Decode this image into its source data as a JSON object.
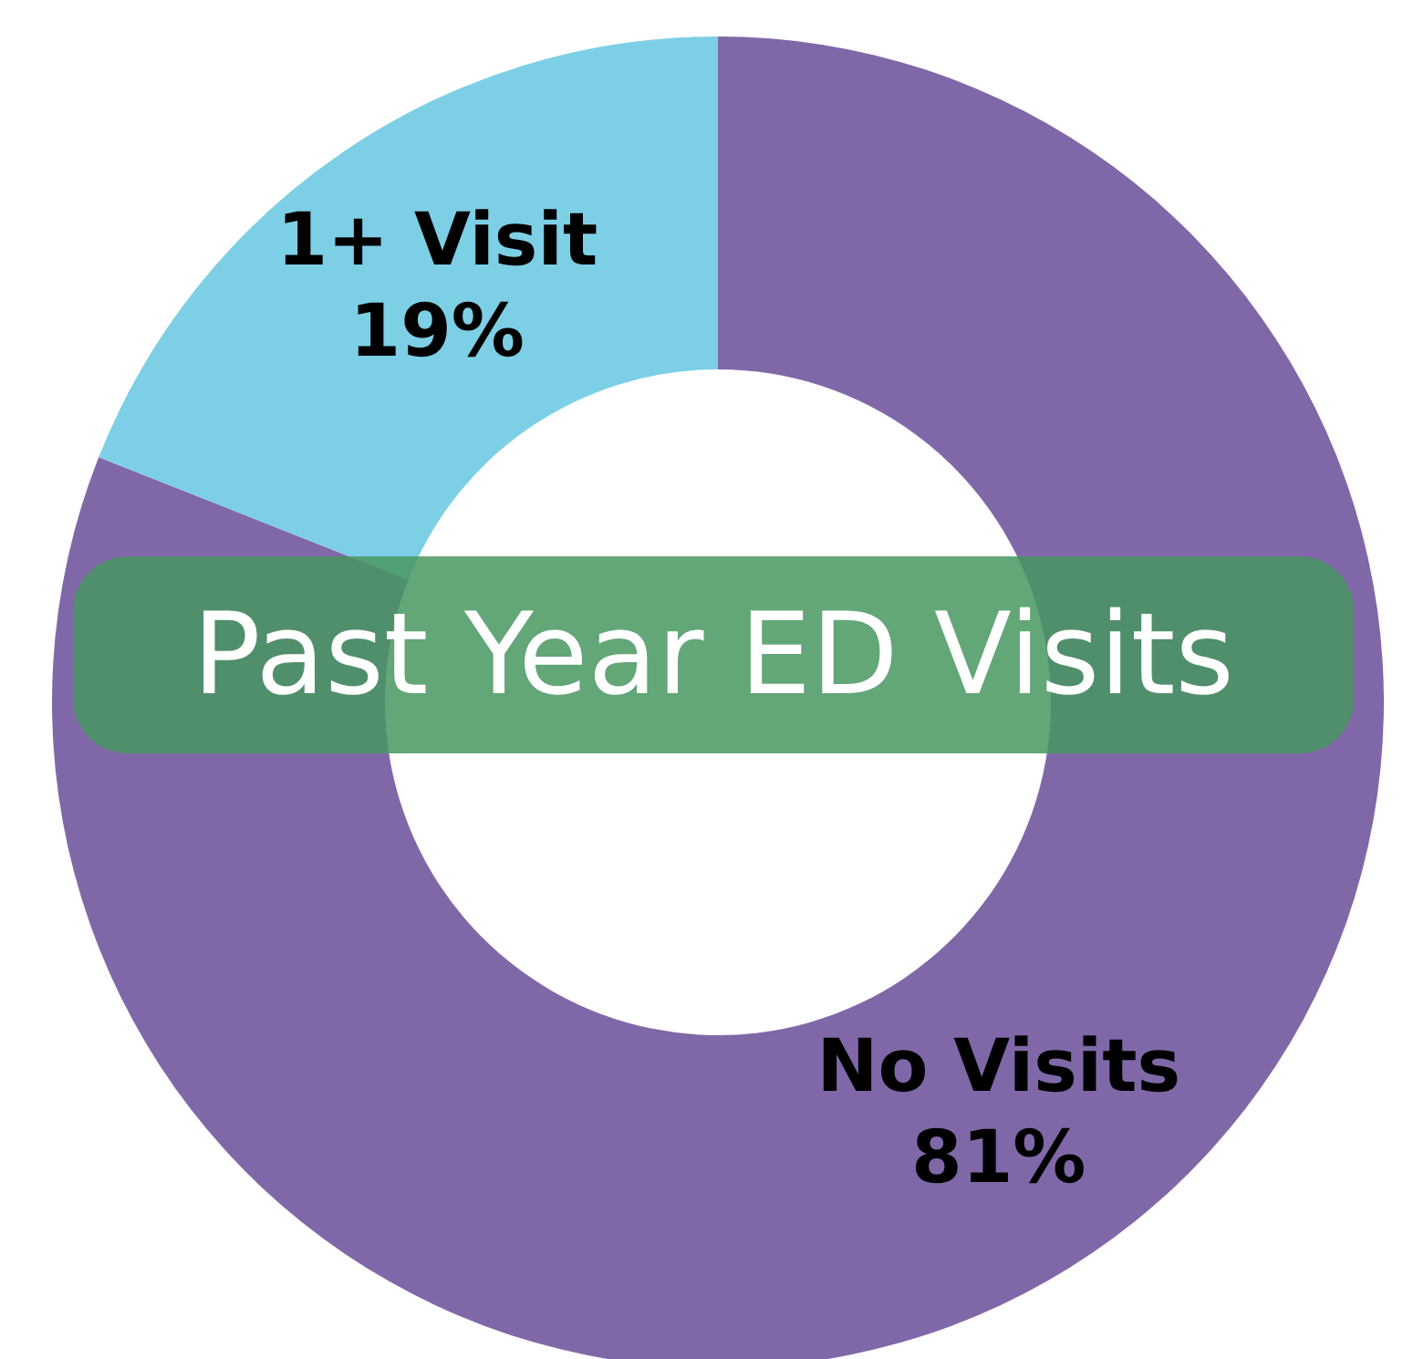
{
  "chart_data": {
    "type": "donut",
    "title": "Past Year ED Visits",
    "categories": [
      "No Visits",
      "1+ Visit"
    ],
    "values": [
      81,
      19
    ],
    "colors": [
      "#8068a8",
      "#7dcfe6"
    ],
    "value_labels": [
      "81%",
      "19%"
    ],
    "legend": false
  }
}
